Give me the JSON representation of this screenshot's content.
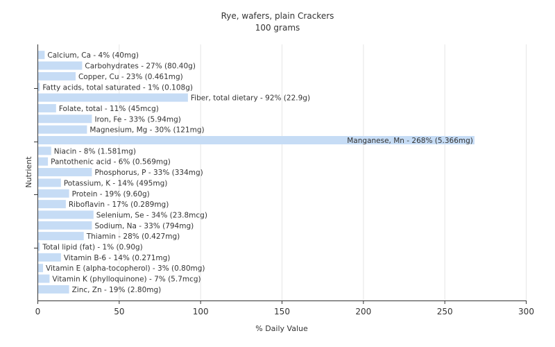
{
  "chart_data": {
    "type": "bar",
    "orientation": "horizontal",
    "title": "Rye, wafers, plain Crackers",
    "subtitle": "100 grams",
    "xlabel": "% Daily Value",
    "ylabel": "Nutrient",
    "xlim": [
      0,
      300
    ],
    "xticks": [
      0,
      50,
      100,
      150,
      200,
      250,
      300
    ],
    "grid": true,
    "bar_color": "#c6dcf5",
    "categories": [
      "Calcium, Ca",
      "Carbohydrates",
      "Copper, Cu",
      "Fatty acids, total saturated",
      "Fiber, total dietary",
      "Folate, total",
      "Iron, Fe",
      "Magnesium, Mg",
      "Manganese, Mn",
      "Niacin",
      "Pantothenic acid",
      "Phosphorus, P",
      "Potassium, K",
      "Protein",
      "Riboflavin",
      "Selenium, Se",
      "Sodium, Na",
      "Thiamin",
      "Total lipid (fat)",
      "Vitamin B-6",
      "Vitamin E (alpha-tocopherol)",
      "Vitamin K (phylloquinone)",
      "Zinc, Zn"
    ],
    "values": [
      4,
      27,
      23,
      1,
      92,
      11,
      33,
      30,
      268,
      8,
      6,
      33,
      14,
      19,
      17,
      34,
      33,
      28,
      1,
      14,
      3,
      7,
      19
    ],
    "labels": [
      "Calcium, Ca - 4% (40mg)",
      "Carbohydrates - 27% (80.40g)",
      "Copper, Cu - 23% (0.461mg)",
      "Fatty acids, total saturated - 1% (0.108g)",
      "Fiber, total dietary - 92% (22.9g)",
      "Folate, total - 11% (45mcg)",
      "Iron, Fe - 33% (5.94mg)",
      "Magnesium, Mg - 30% (121mg)",
      "Manganese, Mn - 268% (5.366mg)",
      "Niacin - 8% (1.581mg)",
      "Pantothenic acid - 6% (0.569mg)",
      "Phosphorus, P - 33% (334mg)",
      "Potassium, K - 14% (495mg)",
      "Protein - 19% (9.60g)",
      "Riboflavin - 17% (0.289mg)",
      "Selenium, Se - 34% (23.8mcg)",
      "Sodium, Na - 33% (794mg)",
      "Thiamin - 28% (0.427mg)",
      "Total lipid (fat) - 1% (0.90g)",
      "Vitamin B-6 - 14% (0.271mg)",
      "Vitamin E (alpha-tocopherol) - 3% (0.80mg)",
      "Vitamin K (phylloquinone) - 7% (5.7mcg)",
      "Zinc, Zn - 19% (2.80mg)"
    ]
  }
}
